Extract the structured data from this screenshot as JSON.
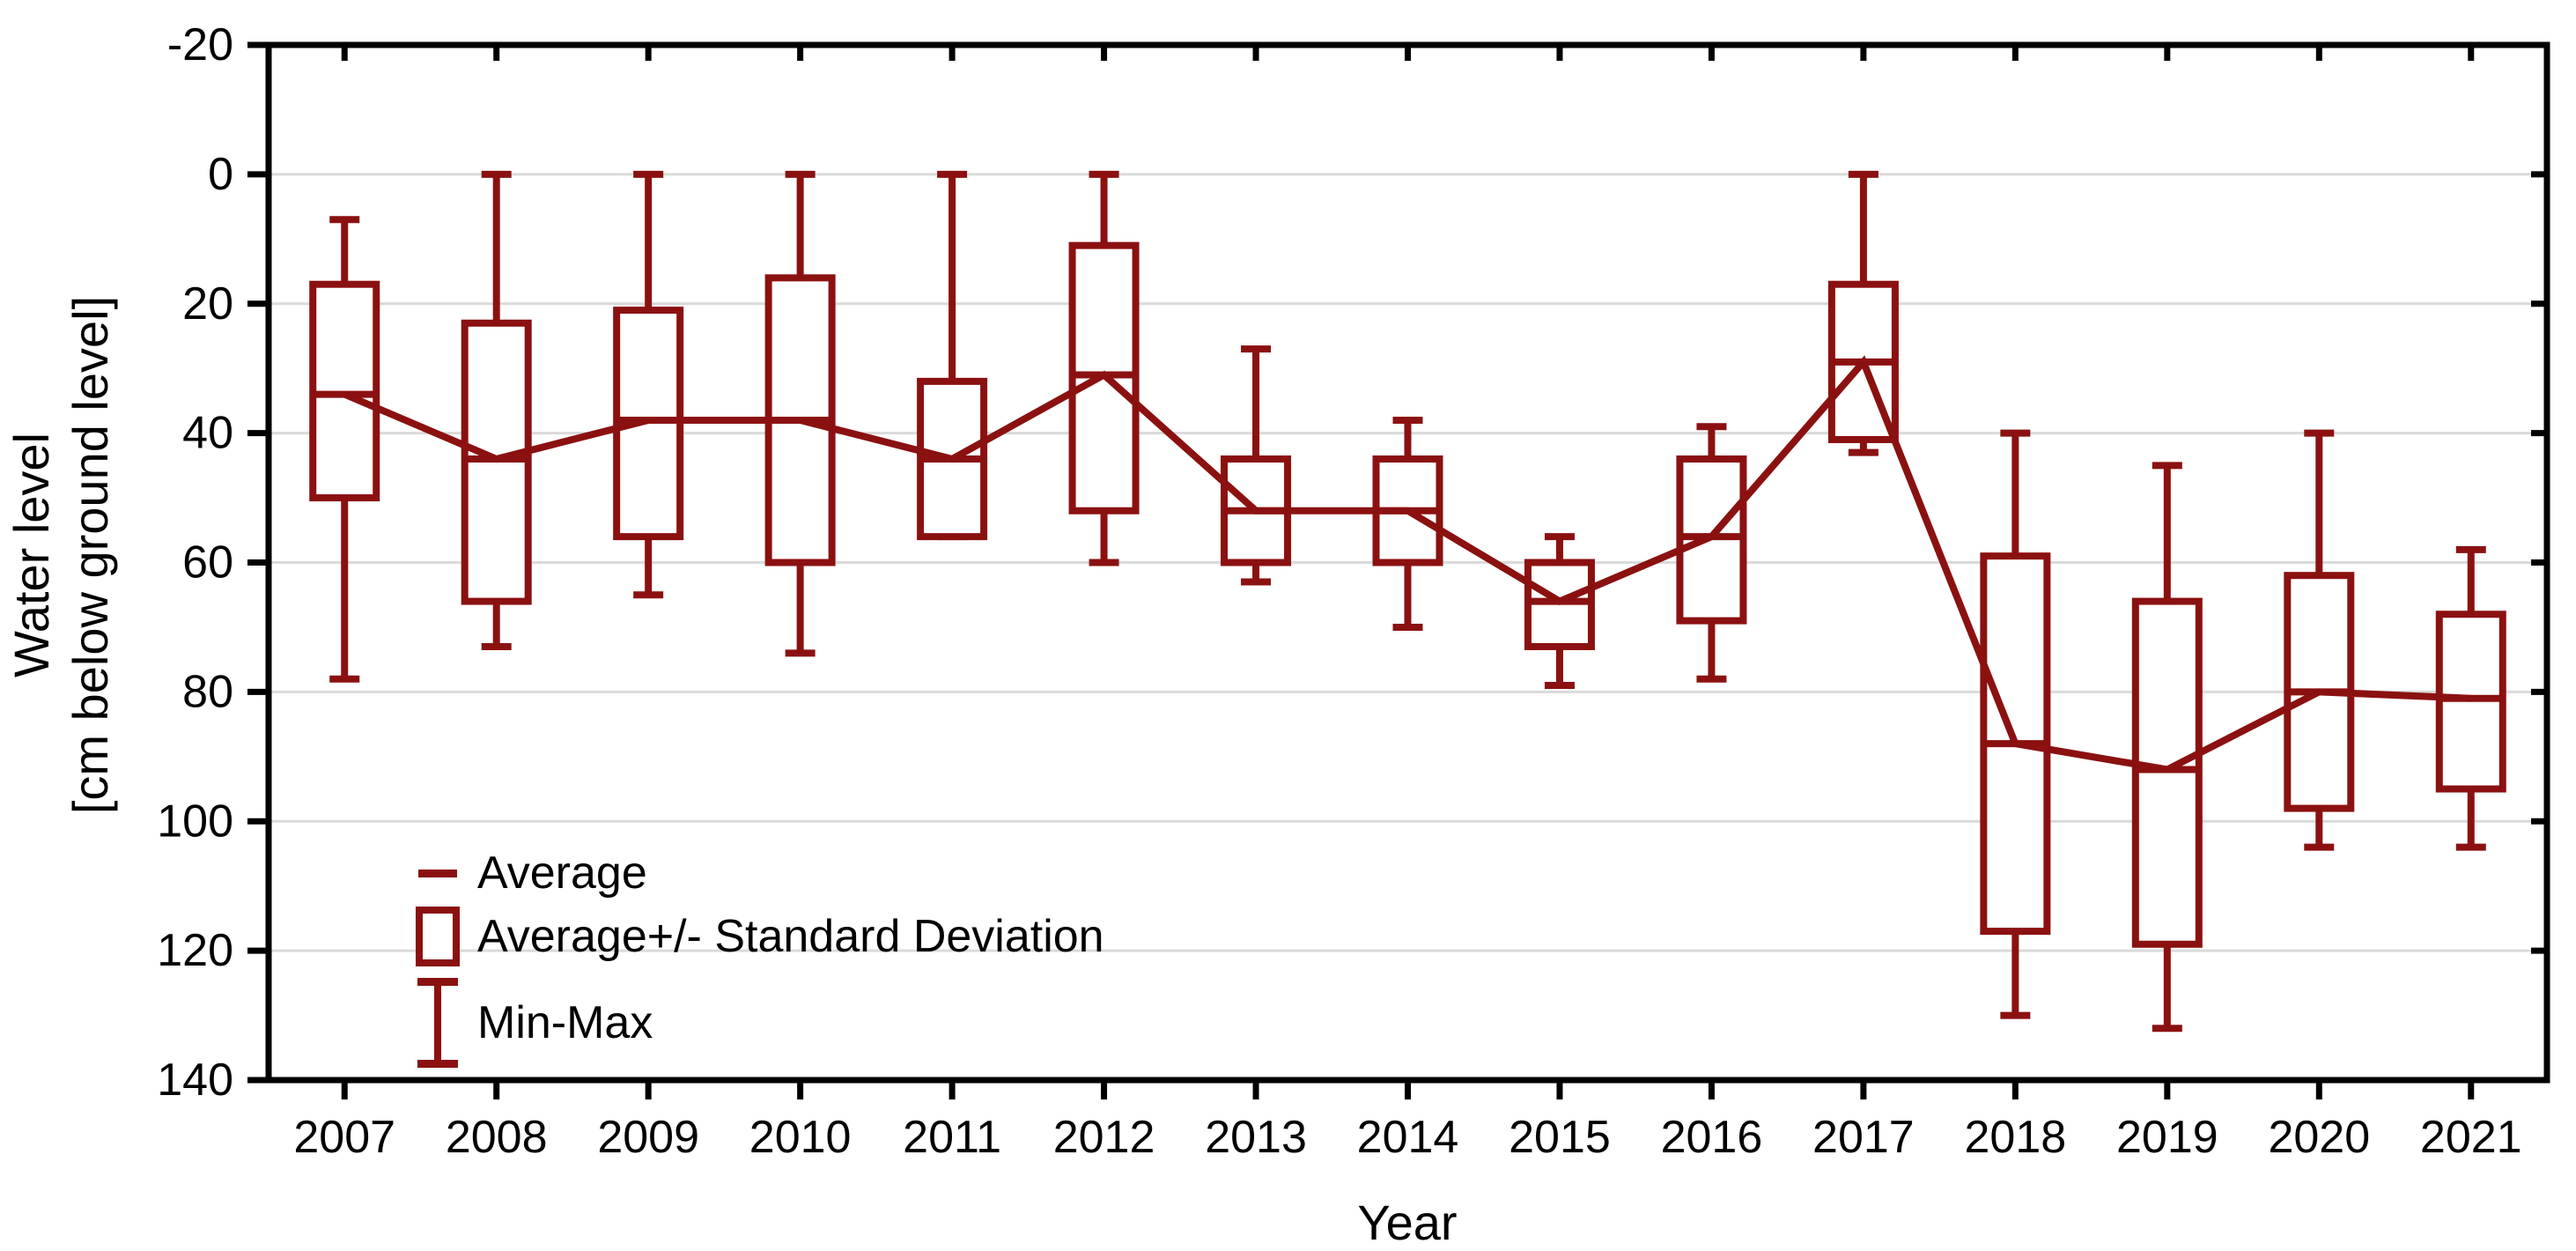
{
  "page": {
    "background": "#FFFFFF"
  },
  "colors": {
    "series": "#8B1111",
    "grid": "#DADADA",
    "axis": "#000000",
    "text": "#000000",
    "box_fill": "#FFFFFF"
  },
  "axes": {
    "y": {
      "title_line1": "Water level",
      "title_line2": "[cm below ground level]",
      "tick_values": [
        -20,
        0,
        20,
        40,
        60,
        80,
        100,
        120,
        140
      ],
      "tick_labels": [
        "-20",
        "0",
        "20",
        "40",
        "60",
        "80",
        "100",
        "120",
        "140"
      ],
      "min": -20,
      "max": 140,
      "direction": "increasing downward"
    },
    "x": {
      "title": "Year",
      "categories": [
        "2007",
        "2008",
        "2009",
        "2010",
        "2011",
        "2012",
        "2013",
        "2014",
        "2015",
        "2016",
        "2017",
        "2018",
        "2019",
        "2020",
        "2021"
      ]
    }
  },
  "legend": {
    "items": [
      {
        "label": "Average",
        "marker": "line-dash"
      },
      {
        "label": "Average+/- Standard Deviation",
        "marker": "box-outline"
      },
      {
        "label": "Min-Max",
        "marker": "whisker-ibeam"
      }
    ]
  },
  "chart_data": {
    "type": "box",
    "title": "",
    "xlabel": "Year",
    "ylabel": "Water level [cm below ground level]",
    "ylim": [
      -20,
      140
    ],
    "y_axis_inverted_downward": true,
    "grid": "horizontal gridlines every 20",
    "legend_position": "inside lower-left of plot",
    "categories": [
      "2007",
      "2008",
      "2009",
      "2010",
      "2011",
      "2012",
      "2013",
      "2014",
      "2015",
      "2016",
      "2017",
      "2018",
      "2019",
      "2020",
      "2021"
    ],
    "series": [
      {
        "name": "Average",
        "type": "line",
        "values": [
          34,
          44,
          38,
          38,
          44,
          31,
          52,
          52,
          66,
          56,
          29,
          88,
          92,
          80,
          81
        ]
      },
      {
        "name": "Average - Standard Deviation (box top, shallower)",
        "type": "box-upper-edge",
        "values": [
          17,
          23,
          21,
          16,
          32,
          11,
          44,
          44,
          60,
          44,
          17,
          59,
          66,
          62,
          68
        ]
      },
      {
        "name": "Average + Standard Deviation (box bottom, deeper)",
        "type": "box-lower-edge",
        "values": [
          50,
          66,
          56,
          60,
          56,
          52,
          60,
          60,
          73,
          69,
          41,
          117,
          119,
          98,
          95
        ]
      },
      {
        "name": "Min (top whisker, shallowest)",
        "type": "whisker-min",
        "values": [
          7,
          0,
          0,
          0,
          0,
          0,
          27,
          38,
          56,
          39,
          0,
          40,
          45,
          40,
          58
        ]
      },
      {
        "name": "Max (bottom whisker, deepest)",
        "type": "whisker-max",
        "values": [
          78,
          73,
          65,
          74,
          56,
          60,
          63,
          70,
          79,
          78,
          43,
          130,
          132,
          104,
          104
        ]
      }
    ]
  }
}
